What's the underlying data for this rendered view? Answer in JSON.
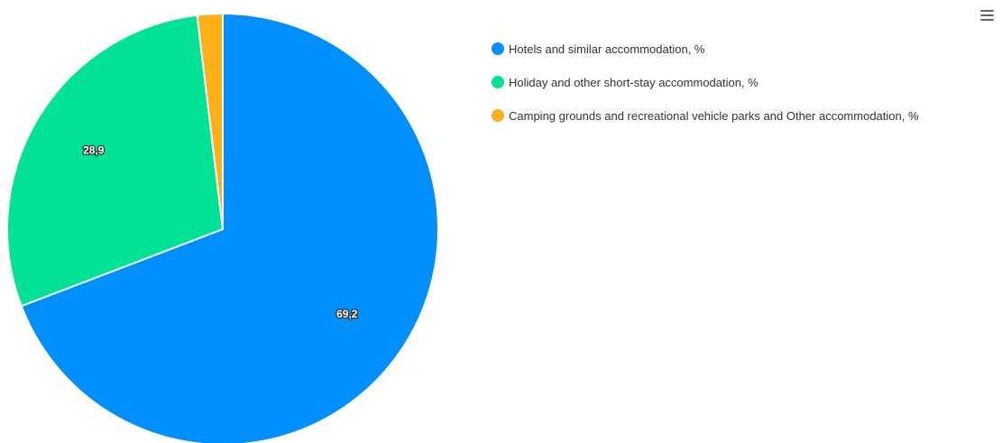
{
  "chart_data": {
    "type": "pie",
    "series": [
      {
        "name": "Hotels and similar accommodation, %",
        "value": 69.2,
        "label": "69,2",
        "color": "#008ffb"
      },
      {
        "name": "Holiday and other short-stay accommodation, %",
        "value": 28.9,
        "label": "28,9",
        "color": "#00e396"
      },
      {
        "name": "Camping grounds and recreational vehicle parks and Other accommodation, %",
        "value": 1.9,
        "label": "",
        "color": "#feb019"
      }
    ],
    "legend_position": "right-top"
  },
  "toolbar": {
    "menu_icon": "hamburger-menu-icon"
  }
}
